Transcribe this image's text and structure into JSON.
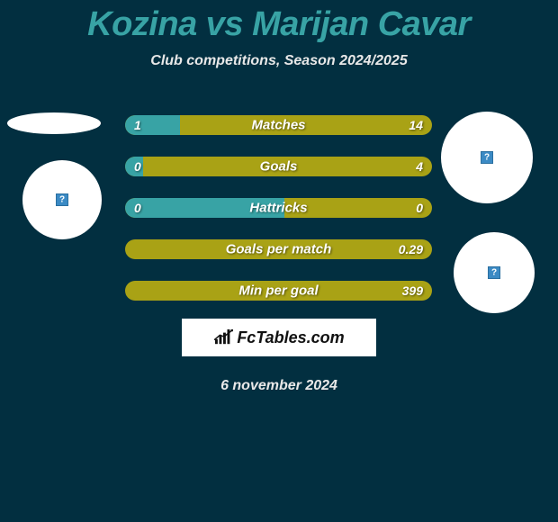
{
  "title": "Kozina vs Marijan Cavar",
  "subtitle": "Club competitions, Season 2024/2025",
  "date": "6 november 2024",
  "brand": "FcTables.com",
  "colors": {
    "background": "#022f40",
    "title": "#38a3a5",
    "text": "#e8e8e8",
    "bar_left": "#38a3a5",
    "bar_right": "#a9a215",
    "badge_bg": "#ffffff",
    "placeholder": "#3b8ac4"
  },
  "rows": [
    {
      "label": "Matches",
      "left": "1",
      "right": "14",
      "left_pct": 18
    },
    {
      "label": "Goals",
      "left": "0",
      "right": "4",
      "left_pct": 6
    },
    {
      "label": "Hattricks",
      "left": "0",
      "right": "0",
      "left_pct": 52
    },
    {
      "label": "Goals per match",
      "left": "",
      "right": "0.29",
      "left_pct": 0
    },
    {
      "label": "Min per goal",
      "left": "",
      "right": "399",
      "left_pct": 0
    }
  ]
}
